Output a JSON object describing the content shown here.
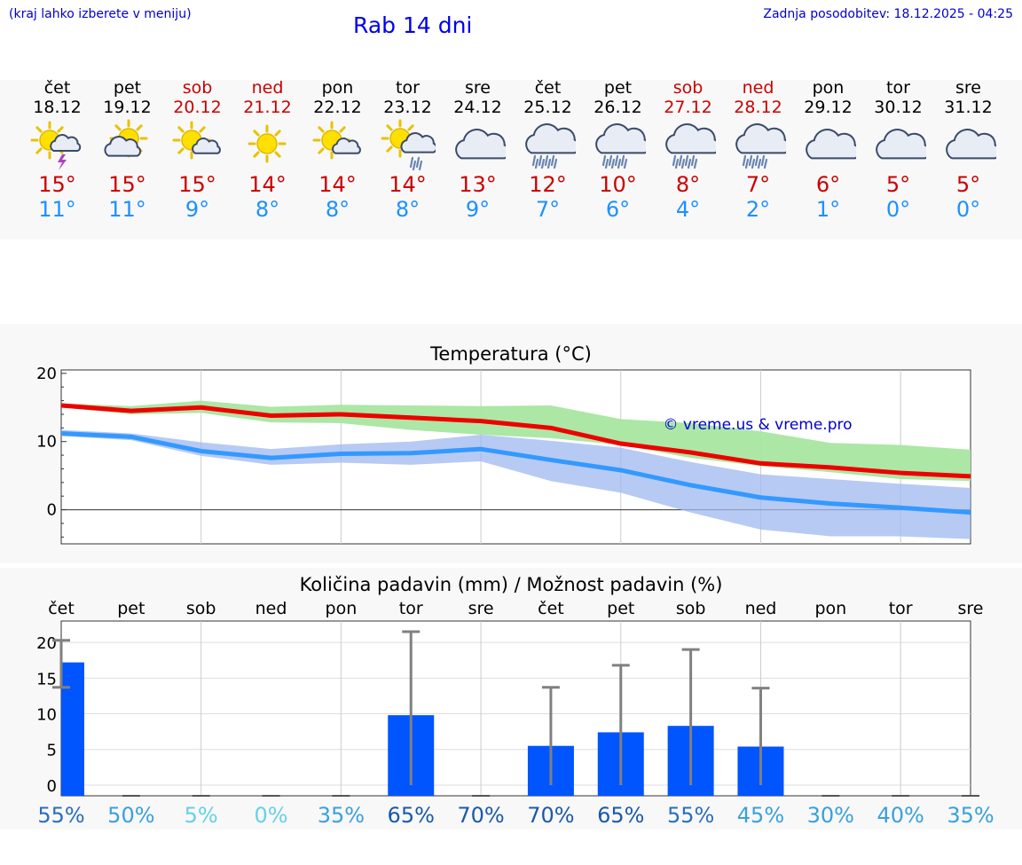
{
  "header": {
    "note": "(kraj lahko izberete v meniju)",
    "title": "Rab 14 dni",
    "update": "Zadnja posodobitev: 18.12.2025 - 04:25"
  },
  "days": [
    {
      "name": "čet",
      "date": "18.12",
      "weekend": false,
      "icon": "sun-cloud-thunder",
      "tmax": "15°",
      "tmin": "11°"
    },
    {
      "name": "pet",
      "date": "19.12",
      "weekend": false,
      "icon": "sun-cloud",
      "tmax": "15°",
      "tmin": "11°"
    },
    {
      "name": "sob",
      "date": "20.12",
      "weekend": true,
      "icon": "sun-small-cloud",
      "tmax": "15°",
      "tmin": "9°"
    },
    {
      "name": "ned",
      "date": "21.12",
      "weekend": true,
      "icon": "sun",
      "tmax": "14°",
      "tmin": "8°"
    },
    {
      "name": "pon",
      "date": "22.12",
      "weekend": false,
      "icon": "sun-small-cloud",
      "tmax": "14°",
      "tmin": "8°"
    },
    {
      "name": "tor",
      "date": "23.12",
      "weekend": false,
      "icon": "sun-cloud-rain",
      "tmax": "14°",
      "tmin": "8°"
    },
    {
      "name": "sre",
      "date": "24.12",
      "weekend": false,
      "icon": "cloud",
      "tmax": "13°",
      "tmin": "9°"
    },
    {
      "name": "čet",
      "date": "25.12",
      "weekend": false,
      "icon": "cloud-rain",
      "tmax": "12°",
      "tmin": "7°"
    },
    {
      "name": "pet",
      "date": "26.12",
      "weekend": false,
      "icon": "cloud-rain",
      "tmax": "10°",
      "tmin": "6°"
    },
    {
      "name": "sob",
      "date": "27.12",
      "weekend": true,
      "icon": "cloud-rain",
      "tmax": "8°",
      "tmin": "4°"
    },
    {
      "name": "ned",
      "date": "28.12",
      "weekend": true,
      "icon": "cloud-rain",
      "tmax": "7°",
      "tmin": "2°"
    },
    {
      "name": "pon",
      "date": "29.12",
      "weekend": false,
      "icon": "cloud",
      "tmax": "6°",
      "tmin": "1°"
    },
    {
      "name": "tor",
      "date": "30.12",
      "weekend": false,
      "icon": "cloud",
      "tmax": "5°",
      "tmin": "0°"
    },
    {
      "name": "sre",
      "date": "31.12",
      "weekend": false,
      "icon": "cloud",
      "tmax": "5°",
      "tmin": "0°"
    }
  ],
  "colors": {
    "max_line": "#ee0000",
    "min_line": "#3399ff",
    "max_band": "#a8e6a0",
    "min_band": "#9fb8f0",
    "bar": "#0055ff",
    "whisker": "#808080",
    "watermark": "#0000cc"
  },
  "chart_data": [
    {
      "type": "line",
      "title": "Temperatura (°C)",
      "watermark": "© vreme.us & vreme.pro",
      "x": [
        0,
        1,
        2,
        3,
        4,
        5,
        6,
        7,
        8,
        9,
        10,
        11,
        12,
        13
      ],
      "ylim": [
        -5,
        20.5
      ],
      "yticks": [
        0,
        10,
        20
      ],
      "series": [
        {
          "name": "max",
          "values": [
            15.3,
            14.5,
            15.0,
            13.8,
            14.0,
            13.5,
            13.0,
            12.0,
            9.7,
            8.4,
            6.8,
            6.2,
            5.4,
            4.9
          ],
          "band_low": [
            15.0,
            14.0,
            14.2,
            12.8,
            12.7,
            11.7,
            11.0,
            10.5,
            9.5,
            7.6,
            6.4,
            5.5,
            4.5,
            4.2
          ],
          "band_high": [
            15.6,
            15.2,
            16.0,
            15.1,
            15.4,
            15.3,
            15.2,
            15.3,
            13.3,
            12.7,
            11.5,
            9.8,
            9.5,
            8.8
          ]
        },
        {
          "name": "min",
          "values": [
            11.2,
            10.7,
            8.6,
            7.6,
            8.2,
            8.3,
            8.9,
            7.3,
            5.8,
            3.6,
            1.8,
            0.9,
            0.3,
            -0.4
          ],
          "band_low": [
            10.8,
            10.2,
            7.9,
            6.6,
            6.9,
            6.6,
            7.1,
            4.2,
            2.5,
            -0.4,
            -2.9,
            -3.9,
            -3.9,
            -4.3
          ],
          "band_high": [
            11.7,
            11.2,
            9.9,
            8.9,
            9.6,
            10.0,
            11.0,
            10.1,
            9.1,
            7.0,
            5.2,
            4.5,
            3.8,
            3.2
          ]
        }
      ]
    },
    {
      "type": "bar",
      "title": "Količina padavin (mm) / Možnost padavin (%)",
      "categories": [
        "čet",
        "pet",
        "sob",
        "ned",
        "pon",
        "tor",
        "sre",
        "čet",
        "pet",
        "sob",
        "ned",
        "pon",
        "tor",
        "sre"
      ],
      "ylim": [
        -1.5,
        23
      ],
      "yticks": [
        0,
        5,
        10,
        15,
        20
      ],
      "values": [
        17.2,
        0,
        0,
        0,
        0,
        9.8,
        0,
        5.5,
        7.4,
        8.3,
        5.4,
        0,
        0,
        0
      ],
      "whisker_low": [
        13.7,
        0,
        0,
        0,
        0,
        0,
        0,
        0,
        0,
        0,
        0,
        0,
        0,
        0
      ],
      "whisker_high": [
        20.3,
        0,
        0,
        0,
        0,
        21.5,
        0,
        13.7,
        16.8,
        19.0,
        13.6,
        0,
        0,
        0
      ],
      "chance": [
        "55%",
        "50%",
        "5%",
        "0%",
        "35%",
        "65%",
        "70%",
        "70%",
        "65%",
        "55%",
        "45%",
        "30%",
        "40%",
        "35%"
      ],
      "chance_colors": [
        "#2a6ebb",
        "#3aa0dc",
        "#66d0e8",
        "#66d0e8",
        "#3aa0dc",
        "#1a5aa8",
        "#1a5aa8",
        "#1a5aa8",
        "#1a5aa8",
        "#2a6ebb",
        "#3aa0dc",
        "#3aa0dc",
        "#3aa0dc",
        "#3aa0dc"
      ]
    }
  ]
}
